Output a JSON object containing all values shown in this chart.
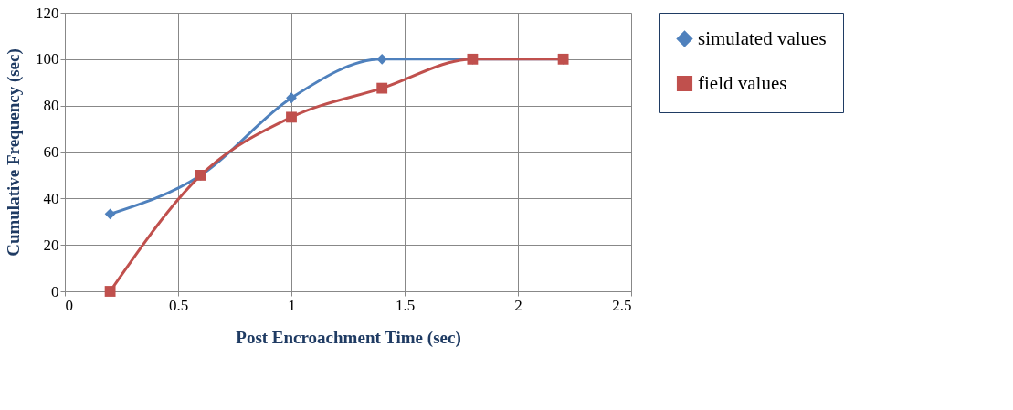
{
  "chart_data": {
    "type": "line",
    "xlabel": "Post Encroachment Time (sec)",
    "ylabel": "Cumulative Frequency (sec)",
    "x": [
      0.2,
      0.6,
      1.0,
      1.4,
      1.8,
      2.2
    ],
    "series": [
      {
        "name": "simulated values",
        "color": "#4f81bd",
        "marker": "diamond",
        "values": [
          33.3,
          50,
          83.3,
          100,
          100,
          100
        ]
      },
      {
        "name": "field values",
        "color": "#c0504d",
        "marker": "square",
        "values": [
          0,
          50,
          75,
          87.5,
          100,
          100
        ]
      }
    ],
    "xlim": [
      0,
      2.5
    ],
    "xticks": [
      0,
      0.5,
      1,
      1.5,
      2,
      2.5
    ],
    "ylim": [
      0,
      120
    ],
    "yticks": [
      0,
      20,
      40,
      60,
      80,
      100,
      120
    ],
    "grid": true,
    "legend": "right",
    "line_style": "solid"
  }
}
